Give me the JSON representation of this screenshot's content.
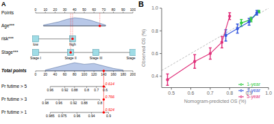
{
  "chart_data": [
    {
      "type": "nomogram",
      "panel": "A",
      "points_range": [
        0,
        100
      ],
      "total_range": [
        0,
        200
      ],
      "rows": [
        {
          "name": "Points",
          "scale": "points",
          "ticks": [
            0,
            10,
            20,
            30,
            40,
            50,
            60,
            70,
            80,
            90,
            100
          ]
        },
        {
          "name": "Age***",
          "scale": "points",
          "density": {
            "x": [
              8,
              16,
              24,
              32,
              40,
              48,
              56,
              64,
              72
            ],
            "y": [
              0.1,
              0.3,
              0.5,
              0.8,
              1,
              0.9,
              0.7,
              0.4,
              0.1
            ]
          },
          "selected": 66
        },
        {
          "name": "risk***",
          "scale": "points",
          "levels": [
            {
              "label": "low",
              "points": 0
            },
            {
              "label": "high",
              "points": 38
            }
          ],
          "selected": 38
        },
        {
          "name": "Stage***",
          "scale": "points",
          "levels": [
            {
              "label": "Stage I",
              "points": 0
            },
            {
              "label": "Stage II",
              "points": 36
            },
            {
              "label": "Stage III",
              "points": 62
            },
            {
              "label": "Stage IV",
              "points": 100
            }
          ],
          "selected": 36
        },
        {
          "name": "Total points",
          "scale": "total",
          "ticks": [
            0,
            20,
            40,
            60,
            80,
            100,
            120,
            140,
            160,
            180,
            200
          ],
          "density": {
            "x": [
              20,
              40,
              60,
              80,
              100,
              120,
              140,
              160,
              180
            ],
            "y": [
              0.1,
              0.4,
              0.7,
              1,
              0.8,
              0.9,
              0.6,
              0.3,
              0.1
            ]
          },
          "selected": 140
        },
        {
          "name": "Pr futime > 5",
          "scale": "total",
          "ticks": [
            {
              "value": 30,
              "label": "0.96"
            },
            {
              "value": 60,
              "label": "0.92"
            },
            {
              "value": 80,
              "label": "0.88"
            },
            {
              "value": 105,
              "label": "0.8"
            },
            {
              "value": 125,
              "label": "0.7"
            },
            {
              "value": 143,
              "label": "0.6"
            }
          ],
          "selected": {
            "value": 140,
            "label": "0.614"
          }
        },
        {
          "name": "Pr futime > 3",
          "scale": "total",
          "ticks": [
            {
              "value": 20,
              "label": "0.98"
            },
            {
              "value": 48,
              "label": "0.96"
            },
            {
              "value": 78,
              "label": "0.92"
            },
            {
              "value": 100,
              "label": "0.88"
            },
            {
              "value": 132,
              "label": "0.8"
            }
          ],
          "selected": {
            "value": 140,
            "label": "0.766"
          }
        },
        {
          "name": "Pr futime > 1",
          "scale": "total",
          "ticks": [
            {
              "value": 30,
              "label": "0.985"
            },
            {
              "value": 55,
              "label": "0.975"
            },
            {
              "value": 85,
              "label": "0.96"
            },
            {
              "value": 115,
              "label": "0.94"
            },
            {
              "value": 150,
              "label": "0.9"
            }
          ],
          "selected": {
            "value": 140,
            "label": "0.924"
          }
        }
      ]
    },
    {
      "type": "line",
      "panel": "B",
      "x_label": "Nomogram-predicted OS (%)",
      "y_label": "Observed OS (%)",
      "xlim": [
        0.45,
        1.0
      ],
      "ylim": [
        0.3,
        1.0
      ],
      "xticks": [
        0.5,
        0.6,
        0.7,
        0.8,
        0.9,
        {
          "value": 1,
          "label": "1.0"
        }
      ],
      "yticks": [
        0.4,
        0.6,
        0.8,
        {
          "value": 1,
          "label": "1.0"
        }
      ],
      "grid": false,
      "legend": "bottom-right",
      "marker": "circle",
      "series": [
        {
          "name": "1-year",
          "color": "#2ecc40",
          "x": [
            0.86,
            0.91,
            0.95
          ],
          "values": [
            0.87,
            0.9,
            0.97
          ],
          "errors": [
            0.03,
            0.02,
            0.01
          ]
        },
        {
          "name": "3-year",
          "color": "#3355dd",
          "x": [
            0.78,
            0.84,
            0.9,
            0.94
          ],
          "values": [
            0.76,
            0.82,
            0.88,
            0.96
          ],
          "errors": [
            0.05,
            0.04,
            0.03,
            0.02
          ]
        },
        {
          "name": "5-year",
          "color": "#e0307a",
          "x": [
            0.48,
            0.62,
            0.7,
            0.76,
            0.8
          ],
          "values": [
            0.37,
            0.53,
            0.6,
            0.7,
            0.93
          ],
          "errors": [
            0.05,
            0.06,
            0.05,
            0.05,
            0.03
          ]
        }
      ]
    }
  ]
}
